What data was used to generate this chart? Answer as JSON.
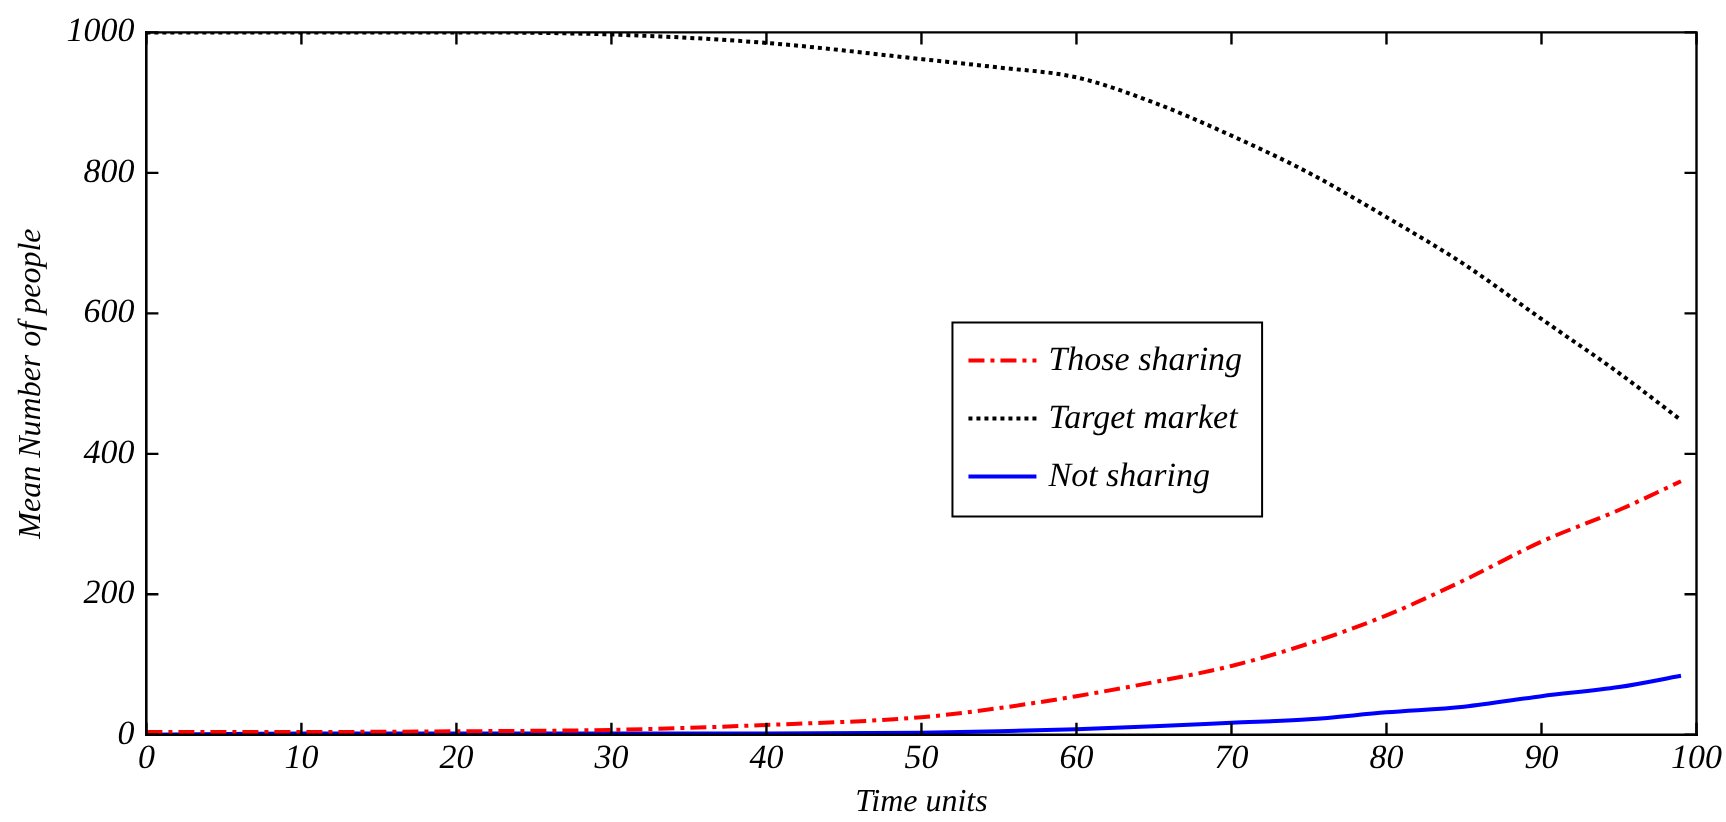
{
  "chart_data": {
    "type": "line",
    "xlabel": "Time units",
    "ylabel": "Mean Number of people",
    "x": [
      0,
      10,
      20,
      30,
      40,
      50,
      55,
      60,
      65,
      70,
      75,
      80,
      85,
      90,
      95,
      99
    ],
    "series": [
      {
        "name": "Those sharing",
        "color": "#ff0000",
        "line_style": "dashed",
        "values": [
          4,
          4,
          5,
          7,
          14,
          25,
          38,
          55,
          75,
          98,
          130,
          170,
          220,
          275,
          320,
          361
        ]
      },
      {
        "name": "Target market",
        "color": "#000000",
        "line_style": "dotted",
        "values": [
          1000,
          1000,
          1000,
          997,
          985,
          962,
          950,
          936,
          900,
          853,
          800,
          737,
          670,
          592,
          515,
          448
        ]
      },
      {
        "name": "Not sharing",
        "color": "#0000ff",
        "line_style": "solid",
        "values": [
          0,
          2,
          2,
          2,
          2,
          3,
          5,
          8,
          12,
          17,
          22,
          32,
          40,
          55,
          68,
          84
        ]
      }
    ],
    "xlim": [
      0,
      100
    ],
    "xticks": [
      0,
      10,
      20,
      30,
      40,
      50,
      60,
      70,
      80,
      90,
      100
    ],
    "ylim": [
      0,
      1000
    ],
    "yticks": [
      0,
      200,
      400,
      600,
      800,
      1000
    ],
    "grid": false,
    "legend": "right",
    "marker": "none"
  }
}
